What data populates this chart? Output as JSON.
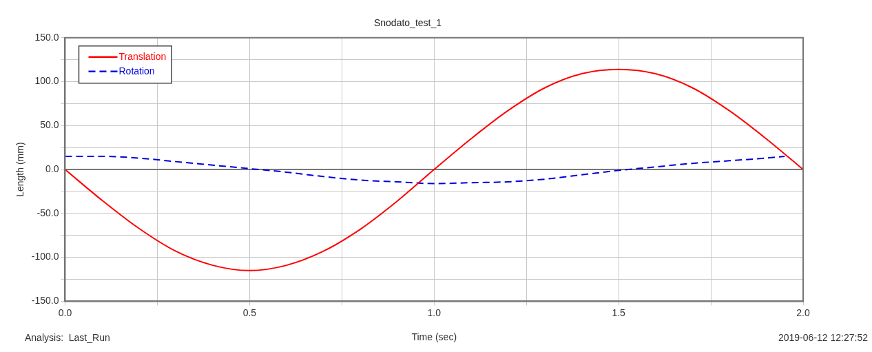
{
  "chart_data": {
    "type": "line",
    "title": "Snodato_test_1",
    "xlabel": "Time (sec)",
    "ylabel": "Length (mm)",
    "annotations": [
      "Analysis:  Last_Run",
      "2019-06-12 12:27:52"
    ],
    "x": [
      0,
      0.1,
      0.2,
      0.3,
      0.4,
      0.5,
      0.6,
      0.7,
      0.8,
      0.9,
      1.0,
      1.1,
      1.2,
      1.3,
      1.4,
      1.5,
      1.6,
      1.7,
      1.8,
      1.9,
      2.0
    ],
    "series": [
      {
        "name": "Translation",
        "color": "#ff0000",
        "line_style": "solid",
        "values": [
          0,
          -35,
          -67,
          -93,
          -109,
          -115,
          -109,
          -93,
          -68,
          -36,
          0,
          35,
          67,
          93,
          109,
          114,
          109,
          93,
          67,
          35,
          0
        ]
      },
      {
        "name": "Rotation",
        "color": "#0000e0",
        "line_style": "dashed",
        "x": [
          0,
          0.1,
          0.2,
          0.3,
          0.4,
          0.5,
          0.6,
          0.7,
          0.8,
          0.9,
          1.0,
          1.1,
          1.2,
          1.3,
          1.4,
          1.5,
          1.6,
          1.7,
          1.8,
          1.9,
          1.95
        ],
        "values": [
          15,
          15,
          13,
          9,
          5,
          1,
          -3,
          -8,
          -12,
          -14,
          -16,
          -15,
          -14,
          -11,
          -6,
          -1,
          3,
          7,
          10,
          13,
          15
        ]
      }
    ],
    "xlim": [
      0,
      2
    ],
    "ylim": [
      -150,
      150
    ],
    "xticks": [
      {
        "value": 0,
        "label": "0.0"
      },
      {
        "value": 0.25,
        "label": null
      },
      {
        "value": 0.5,
        "label": "0.5"
      },
      {
        "value": 0.75,
        "label": null
      },
      {
        "value": 1,
        "label": "1.0"
      },
      {
        "value": 1.25,
        "label": null
      },
      {
        "value": 1.5,
        "label": "1.5"
      },
      {
        "value": 1.75,
        "label": null
      },
      {
        "value": 2,
        "label": "2.0"
      }
    ],
    "yticks": [
      {
        "value": -150,
        "label": "-150.0"
      },
      {
        "value": -125,
        "label": null
      },
      {
        "value": -100,
        "label": "-100.0"
      },
      {
        "value": -75,
        "label": null
      },
      {
        "value": -50,
        "label": "-50.0"
      },
      {
        "value": -25,
        "label": null
      },
      {
        "value": 0,
        "label": "0.0"
      },
      {
        "value": 25,
        "label": null
      },
      {
        "value": 50,
        "label": "50.0"
      },
      {
        "value": 75,
        "label": null
      },
      {
        "value": 100,
        "label": "100.0"
      },
      {
        "value": 125,
        "label": null
      },
      {
        "value": 150,
        "label": "150.0"
      }
    ],
    "ref_lines": [
      {
        "axis": "y",
        "value": 0,
        "color": "#777777"
      }
    ],
    "grid": true,
    "legend": "top left",
    "marker": "none"
  }
}
